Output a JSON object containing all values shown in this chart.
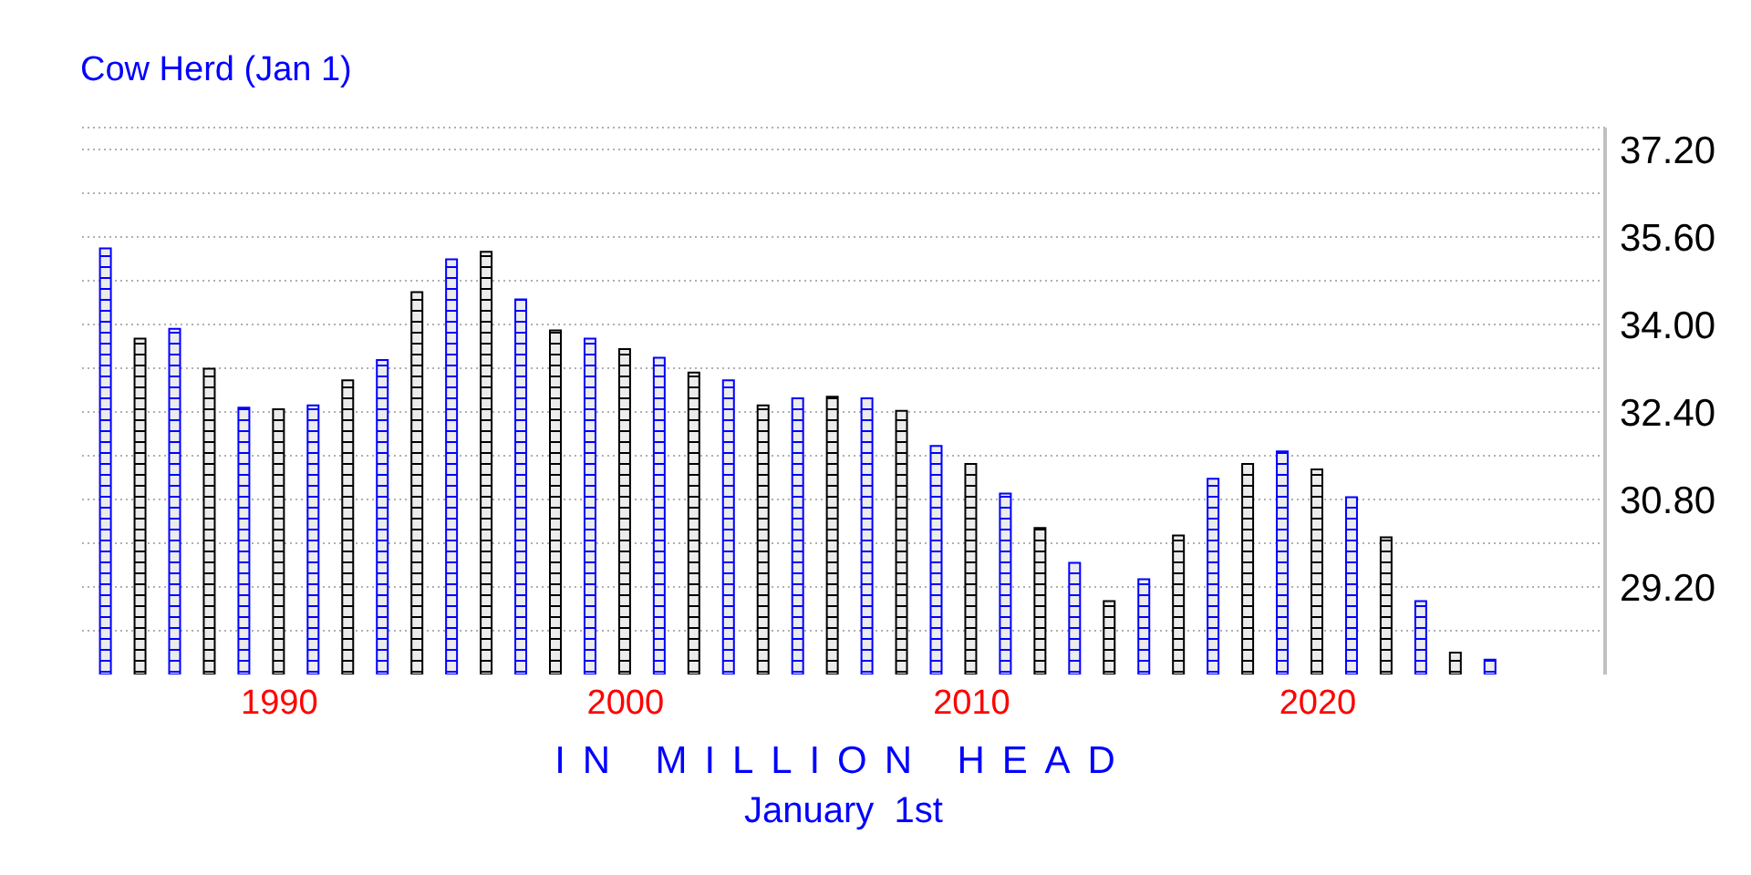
{
  "chart_data": {
    "type": "bar",
    "title": "Cow Herd (Jan 1)",
    "xlabel": "IN MILLION HEAD",
    "annotations": [
      "January  1st"
    ],
    "x": [
      1985,
      1986,
      1987,
      1988,
      1989,
      1990,
      1991,
      1992,
      1993,
      1994,
      1995,
      1996,
      1997,
      1998,
      1999,
      2000,
      2001,
      2002,
      2003,
      2004,
      2005,
      2006,
      2007,
      2008,
      2009,
      2010,
      2011,
      2012,
      2013,
      2014,
      2015,
      2016,
      2017,
      2018,
      2019,
      2020,
      2021,
      2022,
      2023,
      2024,
      2025
    ],
    "values": [
      35.39,
      33.74,
      33.92,
      33.19,
      32.48,
      32.45,
      32.52,
      32.98,
      33.35,
      34.59,
      35.19,
      35.33,
      34.46,
      33.89,
      33.74,
      33.55,
      33.39,
      33.12,
      32.98,
      32.52,
      32.65,
      32.68,
      32.65,
      32.42,
      31.78,
      31.45,
      30.91,
      30.28,
      29.64,
      28.94,
      29.34,
      30.14,
      31.18,
      31.45,
      31.68,
      31.35,
      30.84,
      30.11,
      28.94,
      28.0,
      27.87
    ],
    "colors": [
      "#0000ff",
      "#000000",
      "#0000ff",
      "#000000",
      "#0000ff",
      "#000000",
      "#0000ff",
      "#000000",
      "#0000ff",
      "#000000",
      "#0000ff",
      "#000000",
      "#0000ff",
      "#000000",
      "#0000ff",
      "#000000",
      "#0000ff",
      "#000000",
      "#0000ff",
      "#000000",
      "#0000ff",
      "#000000",
      "#0000ff",
      "#000000",
      "#0000ff",
      "#000000",
      "#0000ff",
      "#000000",
      "#0000ff",
      "#000000",
      "#0000ff",
      "#000000",
      "#0000ff",
      "#000000",
      "#0000ff",
      "#000000",
      "#0000ff",
      "#000000",
      "#0000ff",
      "#000000",
      "#0000ff"
    ],
    "xlim": [
      1984.3,
      2028.3
    ],
    "xticks": [
      1990,
      2000,
      2010,
      2020
    ],
    "ylim": [
      27.6,
      37.6
    ],
    "yticks": [
      {
        "value": 28.4,
        "label": null
      },
      {
        "value": 29.2,
        "label": "29.20"
      },
      {
        "value": 30.0,
        "label": null
      },
      {
        "value": 30.8,
        "label": "30.80"
      },
      {
        "value": 31.6,
        "label": null
      },
      {
        "value": 32.4,
        "label": "32.40"
      },
      {
        "value": 33.2,
        "label": null
      },
      {
        "value": 34.0,
        "label": "34.00"
      },
      {
        "value": 34.8,
        "label": null
      },
      {
        "value": 35.6,
        "label": "35.60"
      },
      {
        "value": 36.4,
        "label": null
      },
      {
        "value": 37.2,
        "label": "37.20"
      },
      {
        "value": 37.6,
        "label": null
      }
    ],
    "grid": "y"
  }
}
